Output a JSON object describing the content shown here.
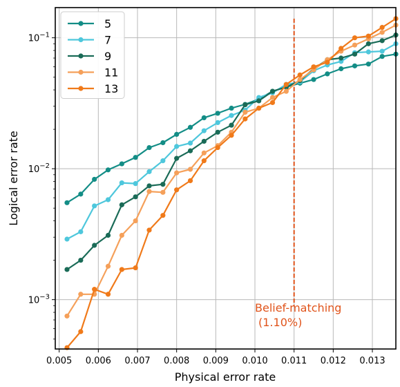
{
  "chart_data": {
    "type": "line",
    "xlabel": "Physical error rate",
    "ylabel": "Logical error rate",
    "y_scale": "log",
    "xlim": [
      0.0049,
      0.0136
    ],
    "ylim": [
      0.00042,
      0.17
    ],
    "grid": true,
    "legend_placement": "top-left",
    "x_ticks": [
      0.005,
      0.006,
      0.007,
      0.008,
      0.009,
      0.01,
      0.011,
      0.012,
      0.013
    ],
    "x_tick_labels": [
      "0.005",
      "0.006",
      "0.007",
      "0.008",
      "0.009",
      "0.010",
      "0.011",
      "0.012",
      "0.013"
    ],
    "y_ticks": [
      0.001,
      0.01,
      0.1
    ],
    "y_tick_labels": [
      {
        "base": "10",
        "exp": "−3"
      },
      {
        "base": "10",
        "exp": "−2"
      },
      {
        "base": "10",
        "exp": "−1"
      }
    ],
    "x": [
      0.0052,
      0.00555,
      0.0059,
      0.00625,
      0.0066,
      0.00695,
      0.0073,
      0.00765,
      0.008,
      0.00835,
      0.0087,
      0.00905,
      0.0094,
      0.00975,
      0.0101,
      0.01045,
      0.0108,
      0.01115,
      0.0115,
      0.01185,
      0.0122,
      0.01255,
      0.0129,
      0.01325,
      0.0136
    ],
    "series": [
      {
        "name": "5",
        "color": "#138d86",
        "values": [
          0.0055,
          0.0064,
          0.0083,
          0.0098,
          0.0109,
          0.0122,
          0.0145,
          0.0158,
          0.0183,
          0.0207,
          0.0245,
          0.0265,
          0.029,
          0.031,
          0.034,
          0.039,
          0.042,
          0.045,
          0.048,
          0.053,
          0.058,
          0.061,
          0.063,
          0.072,
          0.075
        ]
      },
      {
        "name": "7",
        "color": "#4ec7dc",
        "values": [
          0.0029,
          0.0033,
          0.0052,
          0.0058,
          0.0078,
          0.0077,
          0.0095,
          0.0115,
          0.0148,
          0.0157,
          0.0195,
          0.0225,
          0.0255,
          0.028,
          0.035,
          0.038,
          0.044,
          0.046,
          0.056,
          0.062,
          0.066,
          0.077,
          0.078,
          0.079,
          0.09
        ]
      },
      {
        "name": "9",
        "color": "#1a6b57",
        "values": [
          0.0017,
          0.002,
          0.0026,
          0.0031,
          0.0053,
          0.0061,
          0.0074,
          0.0076,
          0.012,
          0.0137,
          0.0162,
          0.019,
          0.0215,
          0.0308,
          0.033,
          0.039,
          0.042,
          0.047,
          0.058,
          0.068,
          0.07,
          0.075,
          0.09,
          0.095,
          0.105
        ]
      },
      {
        "name": "11",
        "color": "#f5a05a",
        "values": [
          0.00075,
          0.0011,
          0.0011,
          0.0018,
          0.0031,
          0.004,
          0.0067,
          0.0066,
          0.0093,
          0.0099,
          0.0132,
          0.015,
          0.019,
          0.027,
          0.029,
          0.035,
          0.039,
          0.048,
          0.057,
          0.068,
          0.079,
          0.088,
          0.098,
          0.11,
          0.125
        ]
      },
      {
        "name": "13",
        "color": "#f07a1a",
        "values": [
          0.00043,
          0.00057,
          0.0012,
          0.0011,
          0.0017,
          0.00175,
          0.0034,
          0.0044,
          0.0069,
          0.0081,
          0.0115,
          0.0145,
          0.018,
          0.024,
          0.029,
          0.032,
          0.044,
          0.052,
          0.06,
          0.065,
          0.083,
          0.1,
          0.103,
          0.12,
          0.14
        ]
      }
    ],
    "vline": {
      "x": 0.011,
      "y_top": 0.14,
      "y_bottom": 0.0009,
      "color": "#e0531a"
    },
    "annotation": {
      "lines": [
        "Belief-matching",
        "(1.10%)"
      ],
      "color": "#e0531a"
    }
  }
}
